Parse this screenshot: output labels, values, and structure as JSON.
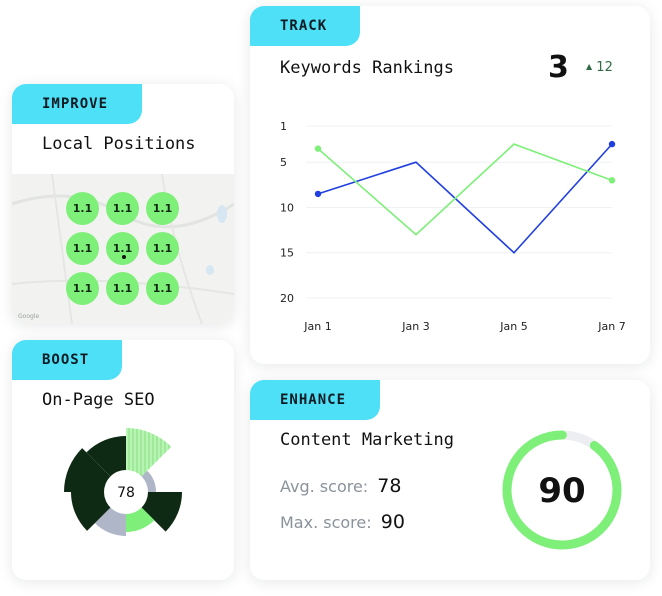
{
  "improve": {
    "tag": "IMPROVE",
    "title": "Local Positions",
    "grid_values": [
      "1.1",
      "1.1",
      "1.1",
      "1.1",
      "1.1",
      "1.1",
      "1.1",
      "1.1",
      "1.1"
    ]
  },
  "boost": {
    "tag": "BOOST",
    "title": "On-Page SEO",
    "score": "78"
  },
  "track": {
    "tag": "TRACK",
    "title": "Keywords Rankings",
    "rank": "3",
    "change_icon": "arrow-up-icon",
    "change_arrow": "▲",
    "change": "12"
  },
  "enhance": {
    "tag": "ENHANCE",
    "title": "Content Marketing",
    "avg_label": "Avg. score:",
    "avg_value": "78",
    "max_label": "Max. score:",
    "max_value": "90",
    "gauge_value": "90",
    "gauge_fraction": 0.9
  },
  "colors": {
    "accent_cyan": "#4ee0f7",
    "green": "#7ef07a",
    "blue": "#1f3fe0",
    "dark_green": "#0e2a14",
    "gray_blue": "#aeb6c8",
    "track_gray": "#eceef2"
  },
  "chart_data": {
    "type": "line",
    "x": [
      "Jan 1",
      "Jan 3",
      "Jan 5",
      "Jan 7"
    ],
    "y_ticks": [
      1,
      5,
      10,
      15,
      20
    ],
    "ylim": [
      1,
      20
    ],
    "y_inverted": true,
    "series": [
      {
        "values": [
          8.5,
          5,
          15,
          3
        ],
        "color": "#1f3fe0"
      },
      {
        "values": [
          3.5,
          13,
          3,
          7
        ],
        "color": "#7ef07a"
      }
    ]
  }
}
